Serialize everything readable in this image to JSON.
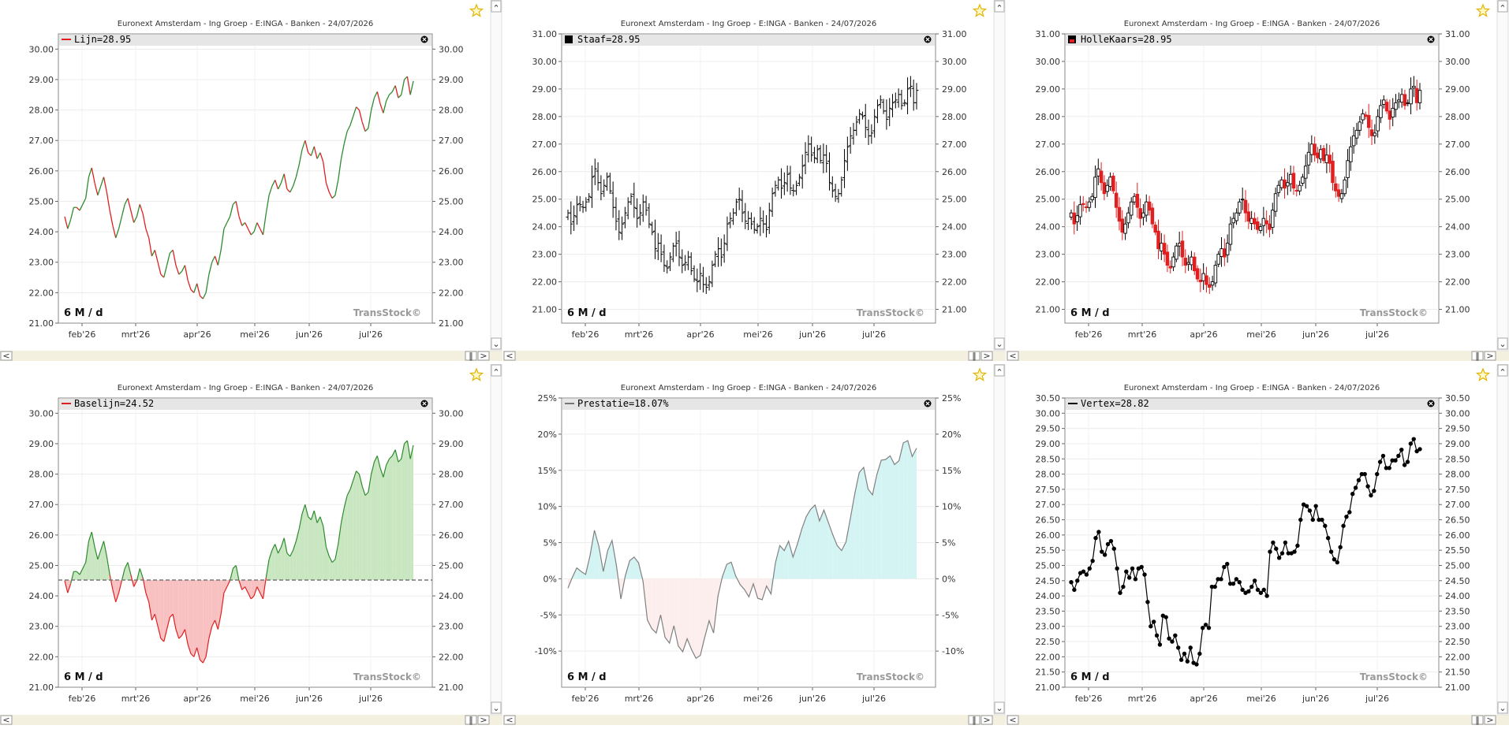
{
  "title": "Euronext Amsterdam - Ing Groep - E:INGA - Banken - 24/07/2026",
  "period": "6 M / d",
  "brand": "TransStock©",
  "months": [
    "feb'26",
    "mrt'26",
    "apr'26",
    "mei'26",
    "jun'26",
    "jul'26"
  ],
  "colors": {
    "up": "#2e8b2e",
    "down": "#e02020",
    "black": "#000000",
    "perfUpFill": "#d4f4f4",
    "perfDownFill": "#fdeeee",
    "baseUpFill": "#c8e6c0",
    "baseDownFill": "#f8c0c0"
  },
  "chart_data": [
    {
      "type": "line",
      "legend": "Lijn=28.95",
      "ylim": [
        21,
        30.5
      ],
      "yticks": [
        "21.00",
        "22.00",
        "23.00",
        "24.00",
        "25.00",
        "26.00",
        "27.00",
        "28.00",
        "29.00",
        "30.00"
      ]
    },
    {
      "type": "bar",
      "legend": "Staaf=28.95",
      "ylim": [
        20.5,
        31
      ],
      "yticks": [
        "21.00",
        "22.00",
        "23.00",
        "24.00",
        "25.00",
        "26.00",
        "27.00",
        "28.00",
        "29.00",
        "30.00",
        "31.00"
      ]
    },
    {
      "type": "candlestick",
      "legend": "HolleKaars=28.95",
      "ylim": [
        20.5,
        31
      ],
      "yticks": [
        "21.00",
        "22.00",
        "23.00",
        "24.00",
        "25.00",
        "26.00",
        "27.00",
        "28.00",
        "29.00",
        "30.00",
        "31.00"
      ]
    },
    {
      "type": "area",
      "legend": "Baselijn=24.52",
      "baseline": 24.52,
      "ylim": [
        21,
        30.5
      ],
      "yticks": [
        "21.00",
        "22.00",
        "23.00",
        "24.00",
        "25.00",
        "26.00",
        "27.00",
        "28.00",
        "29.00",
        "30.00"
      ]
    },
    {
      "type": "area",
      "legend": "Prestatie=18.07%",
      "ylim": [
        -15,
        25
      ],
      "yticks": [
        "-10%",
        "-5%",
        "0%",
        "5%",
        "10%",
        "15%",
        "20%",
        "25%"
      ]
    },
    {
      "type": "scatter",
      "legend": "Vertex=28.82",
      "ylim": [
        21,
        30.5
      ],
      "yticks": [
        "21.00",
        "21.50",
        "22.00",
        "22.50",
        "23.00",
        "23.50",
        "24.00",
        "24.50",
        "25.00",
        "25.50",
        "26.00",
        "26.50",
        "27.00",
        "27.50",
        "28.00",
        "28.50",
        "29.00",
        "29.50",
        "30.00",
        "30.50"
      ]
    }
  ],
  "close": [
    24.5,
    24.1,
    24.4,
    24.8,
    24.8,
    24.7,
    24.9,
    25.1,
    25.8,
    26.1,
    25.6,
    25.2,
    25.5,
    25.8,
    25.3,
    24.7,
    24.2,
    23.8,
    24.1,
    24.5,
    24.9,
    25.1,
    24.7,
    24.3,
    24.5,
    24.9,
    24.6,
    24.1,
    23.8,
    23.2,
    23.4,
    23.0,
    22.6,
    22.5,
    22.9,
    23.3,
    23.4,
    22.9,
    22.6,
    22.7,
    22.9,
    22.4,
    22.1,
    22.0,
    22.3,
    21.9,
    21.8,
    22.0,
    22.6,
    23.0,
    23.2,
    22.9,
    23.4,
    24.1,
    24.3,
    24.5,
    24.9,
    25.0,
    24.5,
    24.2,
    24.3,
    24.1,
    23.9,
    24.0,
    24.3,
    24.1,
    23.9,
    24.6,
    25.2,
    25.5,
    25.7,
    25.4,
    25.6,
    25.9,
    25.4,
    25.3,
    25.5,
    25.8,
    26.2,
    26.7,
    27.0,
    26.6,
    26.5,
    26.8,
    26.4,
    26.6,
    26.3,
    25.6,
    25.3,
    25.1,
    25.2,
    25.7,
    26.4,
    26.9,
    27.3,
    27.5,
    27.8,
    28.1,
    28.0,
    27.6,
    27.3,
    27.4,
    28.0,
    28.4,
    28.6,
    28.2,
    27.9,
    28.3,
    28.5,
    28.6,
    28.8,
    28.4,
    28.5,
    29.0,
    29.1,
    28.5,
    28.95
  ],
  "perf": [
    -1.3,
    0.2,
    1.5,
    1.0,
    0.6,
    3.2,
    6.7,
    4.5,
    1.0,
    3.9,
    5.3,
    1.8,
    -2.8,
    0.4,
    2.5,
    3.0,
    2.2,
    -0.3,
    -5.7,
    -6.9,
    -7.5,
    -5.0,
    -8.1,
    -8.9,
    -6.5,
    -9.3,
    -10.1,
    -8.3,
    -9.8,
    -11.0,
    -10.6,
    -8.1,
    -5.8,
    -7.5,
    -2.4,
    0.3,
    2.0,
    2.3,
    0.4,
    -0.8,
    -1.5,
    -2.5,
    -0.7,
    -2.7,
    -2.9,
    -1.0,
    -2.1,
    2.2,
    4.6,
    3.9,
    5.2,
    3.0,
    4.8,
    6.9,
    8.6,
    9.6,
    10.2,
    8.0,
    9.5,
    7.8,
    6.1,
    4.6,
    3.9,
    5.1,
    8.4,
    11.8,
    14.7,
    15.4,
    12.4,
    11.6,
    14.4,
    16.4,
    16.5,
    17.0,
    15.8,
    16.3,
    18.8,
    19.1,
    16.9,
    18.07
  ],
  "vertex": [
    24.45,
    24.2,
    24.5,
    24.75,
    24.8,
    24.7,
    24.9,
    25.15,
    25.9,
    26.1,
    25.45,
    25.35,
    25.7,
    25.8,
    25.55,
    24.9,
    24.1,
    24.3,
    24.8,
    24.6,
    24.9,
    24.55,
    24.9,
    24.95,
    24.7,
    23.8,
    23.0,
    23.15,
    22.7,
    22.4,
    23.35,
    23.3,
    22.6,
    22.5,
    22.7,
    22.3,
    21.9,
    22.1,
    21.85,
    22.3,
    21.8,
    21.75,
    22.1,
    22.95,
    23.05,
    22.95,
    24.3,
    24.3,
    24.55,
    24.55,
    24.95,
    25.05,
    24.4,
    24.4,
    24.55,
    24.45,
    24.2,
    24.1,
    24.15,
    24.3,
    24.5,
    24.2,
    24.1,
    24.2,
    24.0,
    25.45,
    25.75,
    25.55,
    25.25,
    25.4,
    25.75,
    25.4,
    25.4,
    25.45,
    25.65,
    26.5,
    27.0,
    26.95,
    26.8,
    26.5,
    26.95,
    26.5,
    26.5,
    26.3,
    25.9,
    25.45,
    25.2,
    25.1,
    25.6,
    26.3,
    26.6,
    26.75,
    27.35,
    27.55,
    27.8,
    28.0,
    28.0,
    27.6,
    27.3,
    27.45,
    28.0,
    28.4,
    28.6,
    28.2,
    28.2,
    28.45,
    28.45,
    28.6,
    28.8,
    28.3,
    28.4,
    29.0,
    29.15,
    28.75,
    28.82
  ],
  "windowControls": {
    "scrollLeft": "<",
    "scrollRight": ">",
    "pause": "‖",
    "scrollDown": "⌄",
    "scrollUp": "⌃"
  }
}
